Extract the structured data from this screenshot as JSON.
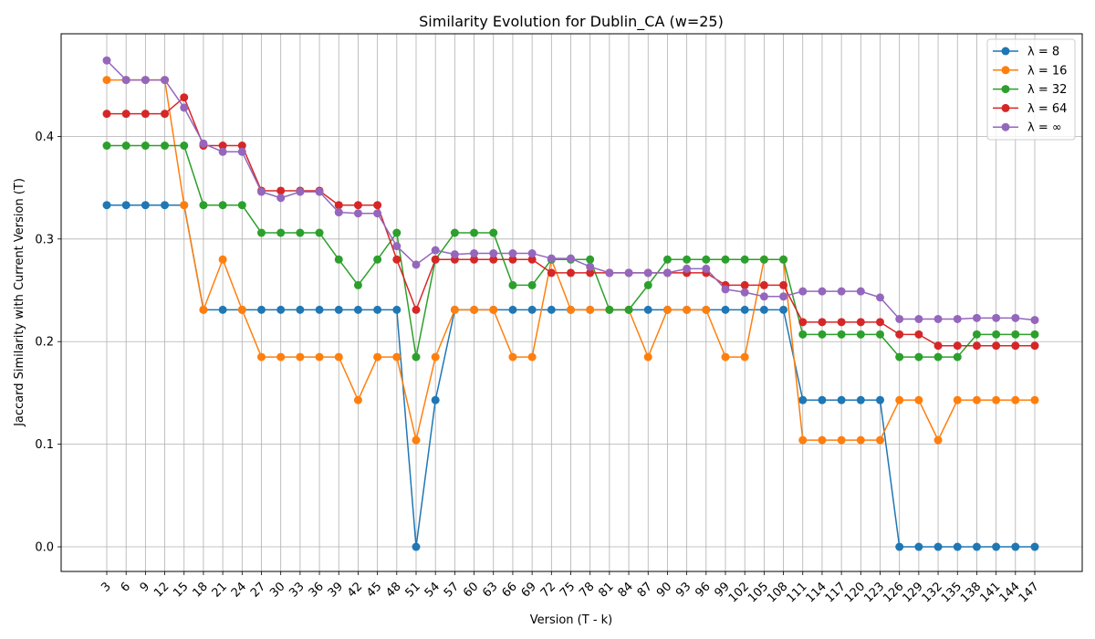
{
  "chart_data": {
    "type": "line",
    "title": "Similarity Evolution for Dublin_CA (w=25)",
    "xlabel": "Version (T - k)",
    "ylabel": "Jaccard Similarity with Current Version (T)",
    "x": [
      3,
      6,
      9,
      12,
      15,
      18,
      21,
      24,
      27,
      30,
      33,
      36,
      39,
      42,
      45,
      48,
      51,
      54,
      57,
      60,
      63,
      66,
      69,
      72,
      75,
      78,
      81,
      84,
      87,
      90,
      93,
      96,
      99,
      102,
      105,
      108,
      111,
      114,
      117,
      120,
      123,
      126,
      129,
      132,
      135,
      138,
      141,
      144,
      147
    ],
    "ylim": [
      -0.024,
      0.5
    ],
    "yticks": [
      0.0,
      0.1,
      0.2,
      0.3,
      0.4
    ],
    "ytick_labels": [
      "0.0",
      "0.1",
      "0.2",
      "0.3",
      "0.4"
    ],
    "grid": true,
    "legend_position": "top-right",
    "series": [
      {
        "name": "λ = 8",
        "color": "#1f77b4",
        "values": [
          0.333,
          0.333,
          0.333,
          0.333,
          0.333,
          0.231,
          0.231,
          0.231,
          0.231,
          0.231,
          0.231,
          0.231,
          0.231,
          0.231,
          0.231,
          0.231,
          0.0,
          0.143,
          0.231,
          0.231,
          0.231,
          0.231,
          0.231,
          0.231,
          0.231,
          0.231,
          0.231,
          0.231,
          0.231,
          0.231,
          0.231,
          0.231,
          0.231,
          0.231,
          0.231,
          0.231,
          0.143,
          0.143,
          0.143,
          0.143,
          0.143,
          0.0,
          0.0,
          0.0,
          0.0,
          0.0,
          0.0,
          0.0,
          0.0
        ]
      },
      {
        "name": "λ = 16",
        "color": "#ff7f0e",
        "values": [
          0.455,
          0.455,
          0.455,
          0.455,
          0.333,
          0.231,
          0.28,
          0.231,
          0.185,
          0.185,
          0.185,
          0.185,
          0.185,
          0.143,
          0.185,
          0.185,
          0.104,
          0.185,
          0.231,
          0.231,
          0.231,
          0.185,
          0.185,
          0.28,
          0.231,
          0.231,
          0.231,
          0.231,
          0.185,
          0.231,
          0.231,
          0.231,
          0.185,
          0.185,
          0.28,
          0.28,
          0.104,
          0.104,
          0.104,
          0.104,
          0.104,
          0.143,
          0.143,
          0.104,
          0.143,
          0.143,
          0.143,
          0.143,
          0.143
        ]
      },
      {
        "name": "λ = 32",
        "color": "#2ca02c",
        "values": [
          0.391,
          0.391,
          0.391,
          0.391,
          0.391,
          0.333,
          0.333,
          0.333,
          0.306,
          0.306,
          0.306,
          0.306,
          0.28,
          0.255,
          0.28,
          0.306,
          0.185,
          0.28,
          0.306,
          0.306,
          0.306,
          0.255,
          0.255,
          0.28,
          0.28,
          0.28,
          0.231,
          0.231,
          0.255,
          0.28,
          0.28,
          0.28,
          0.28,
          0.28,
          0.28,
          0.28,
          0.207,
          0.207,
          0.207,
          0.207,
          0.207,
          0.185,
          0.185,
          0.185,
          0.185,
          0.207,
          0.207,
          0.207,
          0.207
        ]
      },
      {
        "name": "λ = 64",
        "color": "#d62728",
        "values": [
          0.422,
          0.422,
          0.422,
          0.422,
          0.438,
          0.391,
          0.391,
          0.391,
          0.347,
          0.347,
          0.347,
          0.347,
          0.333,
          0.333,
          0.333,
          0.28,
          0.231,
          0.28,
          0.28,
          0.28,
          0.28,
          0.28,
          0.28,
          0.267,
          0.267,
          0.267,
          0.267,
          0.267,
          0.267,
          0.267,
          0.267,
          0.267,
          0.255,
          0.255,
          0.255,
          0.255,
          0.219,
          0.219,
          0.219,
          0.219,
          0.219,
          0.207,
          0.207,
          0.196,
          0.196,
          0.196,
          0.196,
          0.196,
          0.196
        ]
      },
      {
        "name": "λ = ∞",
        "color": "#9467bd",
        "values": [
          0.474,
          0.455,
          0.455,
          0.455,
          0.428,
          0.393,
          0.385,
          0.385,
          0.346,
          0.34,
          0.346,
          0.346,
          0.326,
          0.325,
          0.325,
          0.293,
          0.275,
          0.289,
          0.285,
          0.286,
          0.286,
          0.286,
          0.286,
          0.281,
          0.281,
          0.273,
          0.267,
          0.267,
          0.267,
          0.267,
          0.271,
          0.271,
          0.251,
          0.248,
          0.244,
          0.244,
          0.249,
          0.249,
          0.249,
          0.249,
          0.243,
          0.222,
          0.222,
          0.222,
          0.222,
          0.223,
          0.223,
          0.223,
          0.221
        ]
      }
    ]
  }
}
